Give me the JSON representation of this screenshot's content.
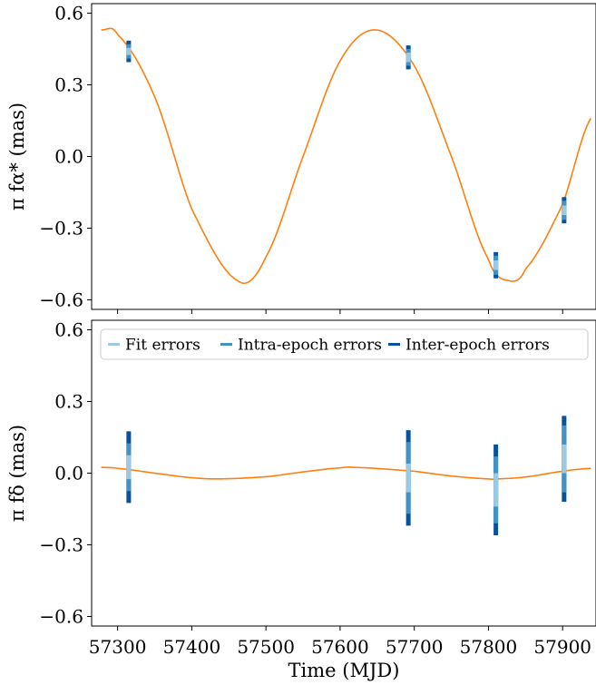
{
  "figure": {
    "xlabel": "Time (MJD)"
  },
  "colors": {
    "curve": "#ff7f0e",
    "fit_errors": "#9ecae1",
    "intra_epoch_errors": "#4292c6",
    "inter_epoch_errors": "#08519c"
  },
  "chart_data": [
    {
      "type": "line",
      "panel": "top",
      "ylabel": "π fα* (mas)",
      "xlim": [
        57265,
        57945
      ],
      "ylim": [
        -0.64,
        0.64
      ],
      "yticks": [
        -0.6,
        -0.3,
        0.0,
        0.3,
        0.6
      ],
      "ytick_labels": [
        "−0.6",
        "−0.3",
        "0.0",
        "0.3",
        "0.6"
      ],
      "xticks": [
        57300,
        57400,
        57500,
        57600,
        57700,
        57800,
        57900
      ],
      "curve": {
        "x_range": [
          57278,
          57938
        ],
        "x": [
          57278,
          57300,
          57350,
          57400,
          57462,
          57500,
          57550,
          57600,
          57648,
          57700,
          57750,
          57800,
          57828,
          57850,
          57900,
          57938
        ],
        "y": [
          0.53,
          0.51,
          0.25,
          -0.22,
          -0.52,
          -0.42,
          0.0,
          0.4,
          0.53,
          0.38,
          0.0,
          -0.43,
          -0.52,
          -0.47,
          -0.2,
          0.16
        ]
      },
      "measurements": [
        {
          "x": 57315,
          "y": 0.44,
          "inter_epoch": 0.045,
          "intra_epoch": 0.03,
          "fit": 0.015
        },
        {
          "x": 57692,
          "y": 0.415,
          "inter_epoch": 0.05,
          "intra_epoch": 0.035,
          "fit": 0.02
        },
        {
          "x": 57810,
          "y": -0.455,
          "inter_epoch": 0.055,
          "intra_epoch": 0.04,
          "fit": 0.02
        },
        {
          "x": 57902,
          "y": -0.225,
          "inter_epoch": 0.055,
          "intra_epoch": 0.04,
          "fit": 0.02
        }
      ]
    },
    {
      "type": "line",
      "panel": "bottom",
      "ylabel": "π fδ (mas)",
      "xlim": [
        57265,
        57945
      ],
      "ylim": [
        -0.64,
        0.64
      ],
      "yticks": [
        -0.6,
        -0.3,
        0.0,
        0.3,
        0.6
      ],
      "ytick_labels": [
        "−0.6",
        "−0.3",
        "0.0",
        "0.3",
        "0.6"
      ],
      "xticks": [
        57300,
        57400,
        57500,
        57600,
        57700,
        57800,
        57900
      ],
      "xtick_labels": [
        "57300",
        "57400",
        "57500",
        "57600",
        "57700",
        "57800",
        "57900"
      ],
      "legend": {
        "placement": "upper-left",
        "entries": [
          "Fit errors",
          "Intra-epoch errors",
          "Inter-epoch errors"
        ]
      },
      "curve": {
        "x_range": [
          57278,
          57938
        ],
        "x": [
          57278,
          57300,
          57350,
          57400,
          57437,
          57500,
          57550,
          57600,
          57620,
          57700,
          57750,
          57800,
          57812,
          57850,
          57900,
          57938
        ],
        "y": [
          0.024,
          0.02,
          0.0,
          -0.019,
          -0.024,
          -0.015,
          0.005,
          0.022,
          0.024,
          0.008,
          -0.012,
          -0.024,
          -0.024,
          -0.016,
          0.008,
          0.02
        ]
      },
      "measurements": [
        {
          "x": 57315,
          "y": 0.025,
          "inter_epoch": 0.15,
          "intra_epoch": 0.1,
          "fit": 0.05
        },
        {
          "x": 57692,
          "y": -0.02,
          "inter_epoch": 0.2,
          "intra_epoch": 0.15,
          "fit": 0.06
        },
        {
          "x": 57810,
          "y": -0.07,
          "inter_epoch": 0.19,
          "intra_epoch": 0.14,
          "fit": 0.07
        },
        {
          "x": 57902,
          "y": 0.06,
          "inter_epoch": 0.18,
          "intra_epoch": 0.14,
          "fit": 0.06
        }
      ]
    }
  ]
}
